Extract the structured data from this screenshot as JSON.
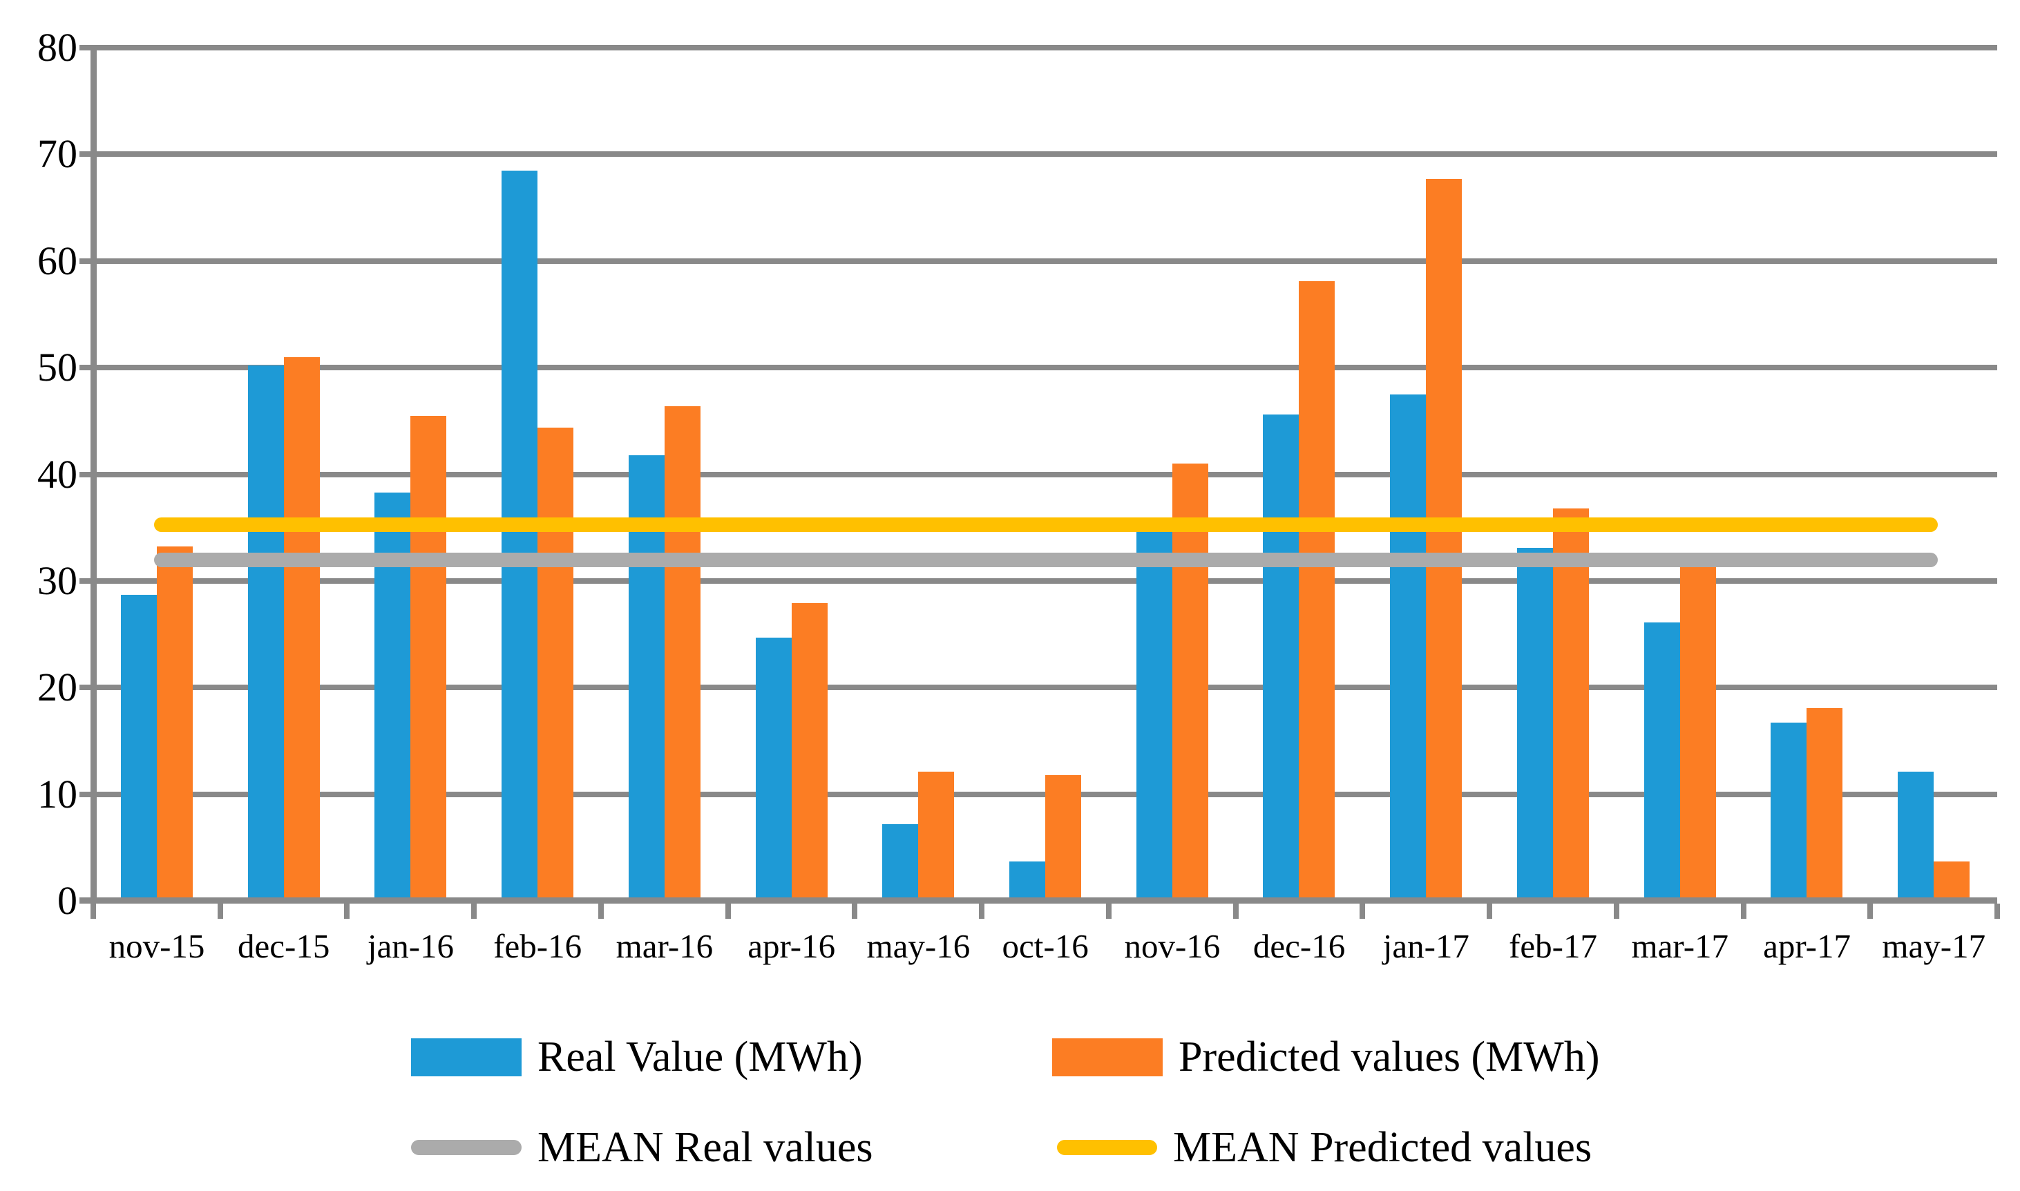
{
  "chart_data": {
    "type": "bar",
    "title": "",
    "xlabel": "",
    "ylabel": "",
    "categories": [
      "nov-15",
      "dec-15",
      "jan-16",
      "feb-16",
      "mar-16",
      "apr-16",
      "may-16",
      "oct-16",
      "nov-16",
      "dec-16",
      "jan-17",
      "feb-17",
      "mar-17",
      "apr-17",
      "may-17"
    ],
    "series": [
      {
        "name": "Real Value (MWh)",
        "color": "#1E9AD6",
        "values": [
          28.7,
          50.2,
          38.3,
          68.5,
          41.8,
          24.7,
          7.2,
          3.7,
          34.9,
          45.6,
          47.5,
          33.1,
          26.1,
          16.7,
          12.1
        ]
      },
      {
        "name": "Predicted values (MWh)",
        "color": "#FC7D23",
        "values": [
          33.2,
          51.0,
          45.5,
          44.4,
          46.4,
          27.9,
          12.1,
          11.8,
          41.0,
          58.1,
          67.7,
          36.8,
          31.4,
          18.1,
          3.7
        ]
      }
    ],
    "mean_lines": [
      {
        "name": "MEAN Real values",
        "color": "#ABABAB",
        "value": 32.0
      },
      {
        "name": "MEAN Predicted values",
        "color": "#FFC000",
        "value": 35.3
      }
    ],
    "ylim": [
      0,
      80
    ],
    "yticks": [
      "0",
      "10",
      "20",
      "30",
      "40",
      "50",
      "60",
      "70",
      "80"
    ],
    "grid": true,
    "gridline_color": "#898989",
    "axis_color": "#898989",
    "legend_position": "bottom"
  }
}
